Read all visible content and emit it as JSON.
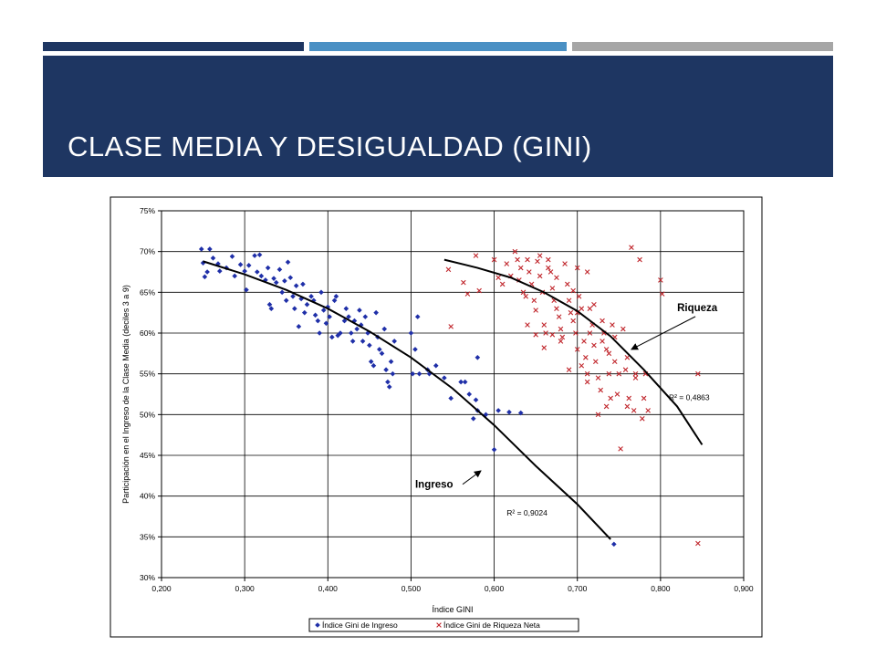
{
  "slide": {
    "title": "CLASE MEDIA Y DESIGUALDAD (GINI)",
    "colors": {
      "header_dark": "#1e3662",
      "header_mid": "#4a90c4",
      "header_gray": "#a6a6a6"
    }
  },
  "chart_data": {
    "type": "scatter",
    "xlabel": "Índice GINI",
    "ylabel": "Participación en el Ingreso de la Clase Media (deciles 3 a 9)",
    "xlim": [
      0.2,
      0.9
    ],
    "ylim": [
      0.3,
      0.75
    ],
    "x_ticks": [
      0.2,
      0.3,
      0.4,
      0.5,
      0.6,
      0.7,
      0.8,
      0.9
    ],
    "y_ticks": [
      0.3,
      0.35,
      0.4,
      0.45,
      0.5,
      0.55,
      0.6,
      0.65,
      0.7,
      0.75
    ],
    "x_tick_labels": [
      "0,200",
      "0,300",
      "0,400",
      "0,500",
      "0,600",
      "0,700",
      "0,800",
      "0,900"
    ],
    "y_tick_labels": [
      "30%",
      "35%",
      "40%",
      "45%",
      "50%",
      "55%",
      "60%",
      "65%",
      "70%",
      "75%"
    ],
    "grid": true,
    "legend_position": "bottom",
    "series": [
      {
        "name": "Índice Gini de Ingreso",
        "marker": "diamond",
        "color": "#1f2fa8",
        "points": [
          [
            0.248,
            0.703
          ],
          [
            0.258,
            0.703
          ],
          [
            0.25,
            0.686
          ],
          [
            0.255,
            0.675
          ],
          [
            0.252,
            0.669
          ],
          [
            0.262,
            0.692
          ],
          [
            0.268,
            0.685
          ],
          [
            0.27,
            0.676
          ],
          [
            0.278,
            0.68
          ],
          [
            0.285,
            0.694
          ],
          [
            0.288,
            0.67
          ],
          [
            0.295,
            0.684
          ],
          [
            0.3,
            0.676
          ],
          [
            0.302,
            0.653
          ],
          [
            0.305,
            0.683
          ],
          [
            0.312,
            0.695
          ],
          [
            0.315,
            0.675
          ],
          [
            0.318,
            0.696
          ],
          [
            0.32,
            0.67
          ],
          [
            0.325,
            0.665
          ],
          [
            0.328,
            0.68
          ],
          [
            0.33,
            0.635
          ],
          [
            0.332,
            0.63
          ],
          [
            0.335,
            0.667
          ],
          [
            0.338,
            0.662
          ],
          [
            0.342,
            0.678
          ],
          [
            0.345,
            0.65
          ],
          [
            0.348,
            0.664
          ],
          [
            0.35,
            0.64
          ],
          [
            0.352,
            0.687
          ],
          [
            0.355,
            0.668
          ],
          [
            0.358,
            0.645
          ],
          [
            0.36,
            0.63
          ],
          [
            0.362,
            0.658
          ],
          [
            0.365,
            0.608
          ],
          [
            0.368,
            0.642
          ],
          [
            0.37,
            0.66
          ],
          [
            0.372,
            0.625
          ],
          [
            0.375,
            0.635
          ],
          [
            0.38,
            0.645
          ],
          [
            0.383,
            0.64
          ],
          [
            0.385,
            0.622
          ],
          [
            0.388,
            0.615
          ],
          [
            0.39,
            0.6
          ],
          [
            0.392,
            0.65
          ],
          [
            0.395,
            0.628
          ],
          [
            0.398,
            0.612
          ],
          [
            0.4,
            0.632
          ],
          [
            0.402,
            0.62
          ],
          [
            0.405,
            0.595
          ],
          [
            0.408,
            0.64
          ],
          [
            0.41,
            0.645
          ],
          [
            0.412,
            0.597
          ],
          [
            0.415,
            0.6
          ],
          [
            0.42,
            0.615
          ],
          [
            0.422,
            0.63
          ],
          [
            0.425,
            0.62
          ],
          [
            0.428,
            0.6
          ],
          [
            0.43,
            0.59
          ],
          [
            0.432,
            0.615
          ],
          [
            0.435,
            0.605
          ],
          [
            0.438,
            0.628
          ],
          [
            0.44,
            0.61
          ],
          [
            0.442,
            0.59
          ],
          [
            0.445,
            0.62
          ],
          [
            0.448,
            0.6
          ],
          [
            0.45,
            0.585
          ],
          [
            0.452,
            0.565
          ],
          [
            0.455,
            0.56
          ],
          [
            0.458,
            0.625
          ],
          [
            0.46,
            0.595
          ],
          [
            0.462,
            0.58
          ],
          [
            0.465,
            0.575
          ],
          [
            0.468,
            0.605
          ],
          [
            0.47,
            0.555
          ],
          [
            0.472,
            0.54
          ],
          [
            0.474,
            0.534
          ],
          [
            0.476,
            0.565
          ],
          [
            0.478,
            0.55
          ],
          [
            0.48,
            0.59
          ],
          [
            0.5,
            0.6
          ],
          [
            0.502,
            0.55
          ],
          [
            0.505,
            0.58
          ],
          [
            0.508,
            0.62
          ],
          [
            0.51,
            0.55
          ],
          [
            0.52,
            0.555
          ],
          [
            0.522,
            0.55
          ],
          [
            0.53,
            0.56
          ],
          [
            0.54,
            0.545
          ],
          [
            0.548,
            0.52
          ],
          [
            0.56,
            0.54
          ],
          [
            0.565,
            0.54
          ],
          [
            0.57,
            0.525
          ],
          [
            0.575,
            0.495
          ],
          [
            0.578,
            0.518
          ],
          [
            0.58,
            0.505
          ],
          [
            0.58,
            0.57
          ],
          [
            0.59,
            0.5
          ],
          [
            0.6,
            0.457
          ],
          [
            0.605,
            0.505
          ],
          [
            0.618,
            0.503
          ],
          [
            0.632,
            0.502
          ],
          [
            0.744,
            0.341
          ]
        ]
      },
      {
        "name": "Índice Gini de Riqueza Neta",
        "marker": "cross",
        "color": "#c0252b",
        "points": [
          [
            0.545,
            0.678
          ],
          [
            0.548,
            0.608
          ],
          [
            0.563,
            0.662
          ],
          [
            0.568,
            0.648
          ],
          [
            0.578,
            0.695
          ],
          [
            0.582,
            0.652
          ],
          [
            0.6,
            0.69
          ],
          [
            0.605,
            0.668
          ],
          [
            0.61,
            0.66
          ],
          [
            0.615,
            0.685
          ],
          [
            0.62,
            0.67
          ],
          [
            0.625,
            0.7
          ],
          [
            0.628,
            0.69
          ],
          [
            0.63,
            0.665
          ],
          [
            0.632,
            0.68
          ],
          [
            0.635,
            0.65
          ],
          [
            0.638,
            0.645
          ],
          [
            0.64,
            0.69
          ],
          [
            0.642,
            0.675
          ],
          [
            0.645,
            0.66
          ],
          [
            0.648,
            0.64
          ],
          [
            0.65,
            0.628
          ],
          [
            0.652,
            0.688
          ],
          [
            0.655,
            0.67
          ],
          [
            0.658,
            0.65
          ],
          [
            0.66,
            0.61
          ],
          [
            0.662,
            0.6
          ],
          [
            0.665,
            0.69
          ],
          [
            0.668,
            0.675
          ],
          [
            0.67,
            0.655
          ],
          [
            0.672,
            0.64
          ],
          [
            0.675,
            0.63
          ],
          [
            0.678,
            0.62
          ],
          [
            0.68,
            0.605
          ],
          [
            0.682,
            0.595
          ],
          [
            0.685,
            0.685
          ],
          [
            0.688,
            0.66
          ],
          [
            0.69,
            0.64
          ],
          [
            0.692,
            0.625
          ],
          [
            0.695,
            0.615
          ],
          [
            0.698,
            0.6
          ],
          [
            0.7,
            0.58
          ],
          [
            0.702,
            0.645
          ],
          [
            0.705,
            0.63
          ],
          [
            0.708,
            0.59
          ],
          [
            0.71,
            0.57
          ],
          [
            0.712,
            0.55
          ],
          [
            0.715,
            0.63
          ],
          [
            0.718,
            0.61
          ],
          [
            0.72,
            0.585
          ],
          [
            0.722,
            0.565
          ],
          [
            0.725,
            0.545
          ],
          [
            0.728,
            0.53
          ],
          [
            0.73,
            0.615
          ],
          [
            0.732,
            0.6
          ],
          [
            0.735,
            0.58
          ],
          [
            0.738,
            0.55
          ],
          [
            0.74,
            0.52
          ],
          [
            0.742,
            0.61
          ],
          [
            0.745,
            0.595
          ],
          [
            0.75,
            0.55
          ],
          [
            0.752,
            0.458
          ],
          [
            0.755,
            0.605
          ],
          [
            0.758,
            0.555
          ],
          [
            0.76,
            0.57
          ],
          [
            0.762,
            0.52
          ],
          [
            0.765,
            0.705
          ],
          [
            0.768,
            0.505
          ],
          [
            0.77,
            0.55
          ],
          [
            0.775,
            0.69
          ],
          [
            0.778,
            0.495
          ],
          [
            0.78,
            0.52
          ],
          [
            0.782,
            0.55
          ],
          [
            0.785,
            0.505
          ],
          [
            0.8,
            0.665
          ],
          [
            0.802,
            0.648
          ],
          [
            0.845,
            0.55
          ],
          [
            0.845,
            0.342
          ],
          [
            0.655,
            0.695
          ],
          [
            0.665,
            0.68
          ],
          [
            0.675,
            0.668
          ],
          [
            0.695,
            0.652
          ],
          [
            0.7,
            0.625
          ],
          [
            0.715,
            0.6
          ],
          [
            0.72,
            0.635
          ],
          [
            0.738,
            0.575
          ],
          [
            0.748,
            0.525
          ],
          [
            0.69,
            0.555
          ],
          [
            0.705,
            0.56
          ],
          [
            0.725,
            0.5
          ],
          [
            0.735,
            0.51
          ],
          [
            0.7,
            0.68
          ],
          [
            0.712,
            0.675
          ],
          [
            0.64,
            0.61
          ],
          [
            0.65,
            0.598
          ],
          [
            0.66,
            0.582
          ],
          [
            0.67,
            0.598
          ],
          [
            0.68,
            0.59
          ],
          [
            0.73,
            0.59
          ],
          [
            0.76,
            0.51
          ],
          [
            0.77,
            0.545
          ],
          [
            0.712,
            0.54
          ],
          [
            0.745,
            0.565
          ]
        ]
      }
    ],
    "trendlines": [
      {
        "series": "Índice Gini de Ingreso",
        "type": "poly2",
        "x_range": [
          0.25,
          0.74
        ],
        "points": [
          [
            0.25,
            0.688
          ],
          [
            0.3,
            0.672
          ],
          [
            0.35,
            0.653
          ],
          [
            0.4,
            0.63
          ],
          [
            0.45,
            0.602
          ],
          [
            0.5,
            0.57
          ],
          [
            0.55,
            0.532
          ],
          [
            0.6,
            0.487
          ],
          [
            0.65,
            0.437
          ],
          [
            0.7,
            0.39
          ],
          [
            0.74,
            0.347
          ]
        ],
        "label": "R² = 0,9024",
        "label_pos": [
          0.615,
          0.376
        ]
      },
      {
        "series": "Índice Gini de Riqueza Neta",
        "type": "poly2",
        "x_range": [
          0.54,
          0.85
        ],
        "points": [
          [
            0.54,
            0.69
          ],
          [
            0.58,
            0.68
          ],
          [
            0.62,
            0.668
          ],
          [
            0.66,
            0.65
          ],
          [
            0.7,
            0.627
          ],
          [
            0.74,
            0.596
          ],
          [
            0.78,
            0.555
          ],
          [
            0.82,
            0.51
          ],
          [
            0.85,
            0.463
          ]
        ],
        "label": "R² = 0,4863",
        "label_pos": [
          0.81,
          0.518
        ]
      }
    ],
    "annotations": [
      {
        "text": "Riqueza",
        "pos": [
          0.82,
          0.627
        ],
        "arrow_to": [
          0.765,
          0.58
        ]
      },
      {
        "text": "Ingreso",
        "pos": [
          0.505,
          0.41
        ],
        "arrow_to": [
          0.584,
          0.431
        ]
      }
    ]
  }
}
